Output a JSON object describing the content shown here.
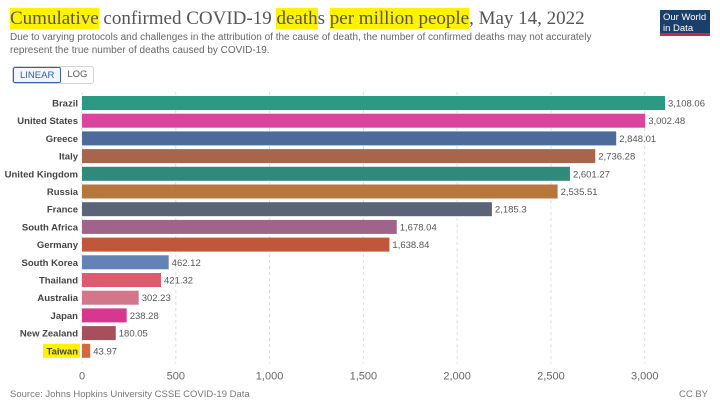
{
  "header": {
    "title_parts": [
      "Cumulative",
      " confirmed COVID-19 ",
      "death",
      "s ",
      "per million people",
      ", May 14, 2022"
    ],
    "subtitle": "Due to varying protocols and challenges in the attribution of the cause of death, the number of confirmed deaths may not accurately represent the true number of deaths caused by COVID-19.",
    "logo_line1": "Our World",
    "logo_line2": "in Data"
  },
  "controls": {
    "linear_label": "LINEAR",
    "log_label": "LOG"
  },
  "footer": {
    "source": "Source: Johns Hopkins University CSSE COVID-19 Data",
    "license": "CC BY"
  },
  "chart_data": {
    "type": "bar",
    "orientation": "horizontal",
    "title": "Cumulative confirmed COVID-19 deaths per million people, May 14, 2022",
    "categories": [
      "Brazil",
      "United States",
      "Greece",
      "Italy",
      "United Kingdom",
      "Russia",
      "France",
      "South Africa",
      "Germany",
      "South Korea",
      "Thailand",
      "Australia",
      "Japan",
      "New Zealand",
      "Taiwan"
    ],
    "values": [
      3108.06,
      3002.48,
      2848.01,
      2736.28,
      2601.27,
      2535.51,
      2185.3,
      1678.04,
      1638.84,
      462.12,
      421.32,
      302.23,
      238.28,
      180.05,
      43.97
    ],
    "value_labels": [
      "3,108.06",
      "3,002.48",
      "2,848.01",
      "2,736.28",
      "2,601.27",
      "2,535.51",
      "2,185.3",
      "1,678.04",
      "1,638.84",
      "462.12",
      "421.32",
      "302.23",
      "238.28",
      "180.05",
      "43.97"
    ],
    "colors": [
      "#2b9a83",
      "#d9449c",
      "#4c6b9a",
      "#a7664c",
      "#2f8a7b",
      "#b8773a",
      "#5b6477",
      "#a0648a",
      "#c1573a",
      "#6382b5",
      "#df5a6d",
      "#d4768b",
      "#d8378f",
      "#a84f5c",
      "#d26b3b"
    ],
    "xlim": [
      0,
      3108.06
    ],
    "xticks": [
      0,
      500,
      1000,
      1500,
      2000,
      2500,
      3000
    ],
    "xtick_labels": [
      "0",
      "500",
      "1,000",
      "1,500",
      "2,000",
      "2,500",
      "3,000"
    ],
    "highlighted_category": "Taiwan",
    "highlight_color": "#fff200"
  }
}
